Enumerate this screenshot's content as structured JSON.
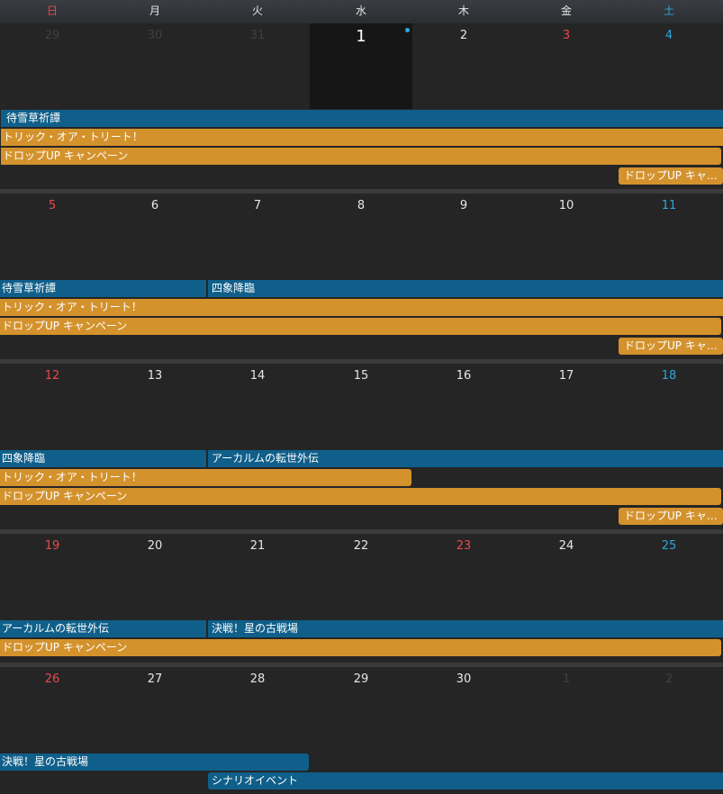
{
  "weekdays": [
    "日",
    "月",
    "火",
    "水",
    "木",
    "金",
    "土"
  ],
  "colors": {
    "sunday": "#e94a4a",
    "saturday": "#2da7df",
    "event_blue": "#0f5f8a",
    "event_orange": "#d4922c",
    "today_bg": "#161616"
  },
  "weeks": [
    {
      "days": [
        "29",
        "30",
        "31",
        "1",
        "2",
        "3",
        "4"
      ],
      "events": [
        "待雪草祈譚",
        "トリック・オア・トリート！",
        "ドロップUP キャンペーン",
        "ドロップUP キャ…"
      ]
    },
    {
      "days": [
        "5",
        "6",
        "7",
        "8",
        "9",
        "10",
        "11"
      ],
      "events": [
        "待雪草祈譚",
        "四象降臨",
        "トリック・オア・トリート！",
        "ドロップUP キャンペーン",
        "ドロップUP キャ…"
      ]
    },
    {
      "days": [
        "12",
        "13",
        "14",
        "15",
        "16",
        "17",
        "18"
      ],
      "events": [
        "四象降臨",
        "アーカルムの転世外伝",
        "トリック・オア・トリート！",
        "ドロップUP キャンペーン",
        "ドロップUP キャ…"
      ]
    },
    {
      "days": [
        "19",
        "20",
        "21",
        "22",
        "23",
        "24",
        "25"
      ],
      "events": [
        "アーカルムの転世外伝",
        "決戦！星の古戦場",
        "ドロップUP キャンペーン"
      ]
    },
    {
      "days": [
        "26",
        "27",
        "28",
        "29",
        "30",
        "1",
        "2"
      ],
      "events": [
        "決戦！星の古戦場",
        "シナリオイベント"
      ]
    }
  ]
}
